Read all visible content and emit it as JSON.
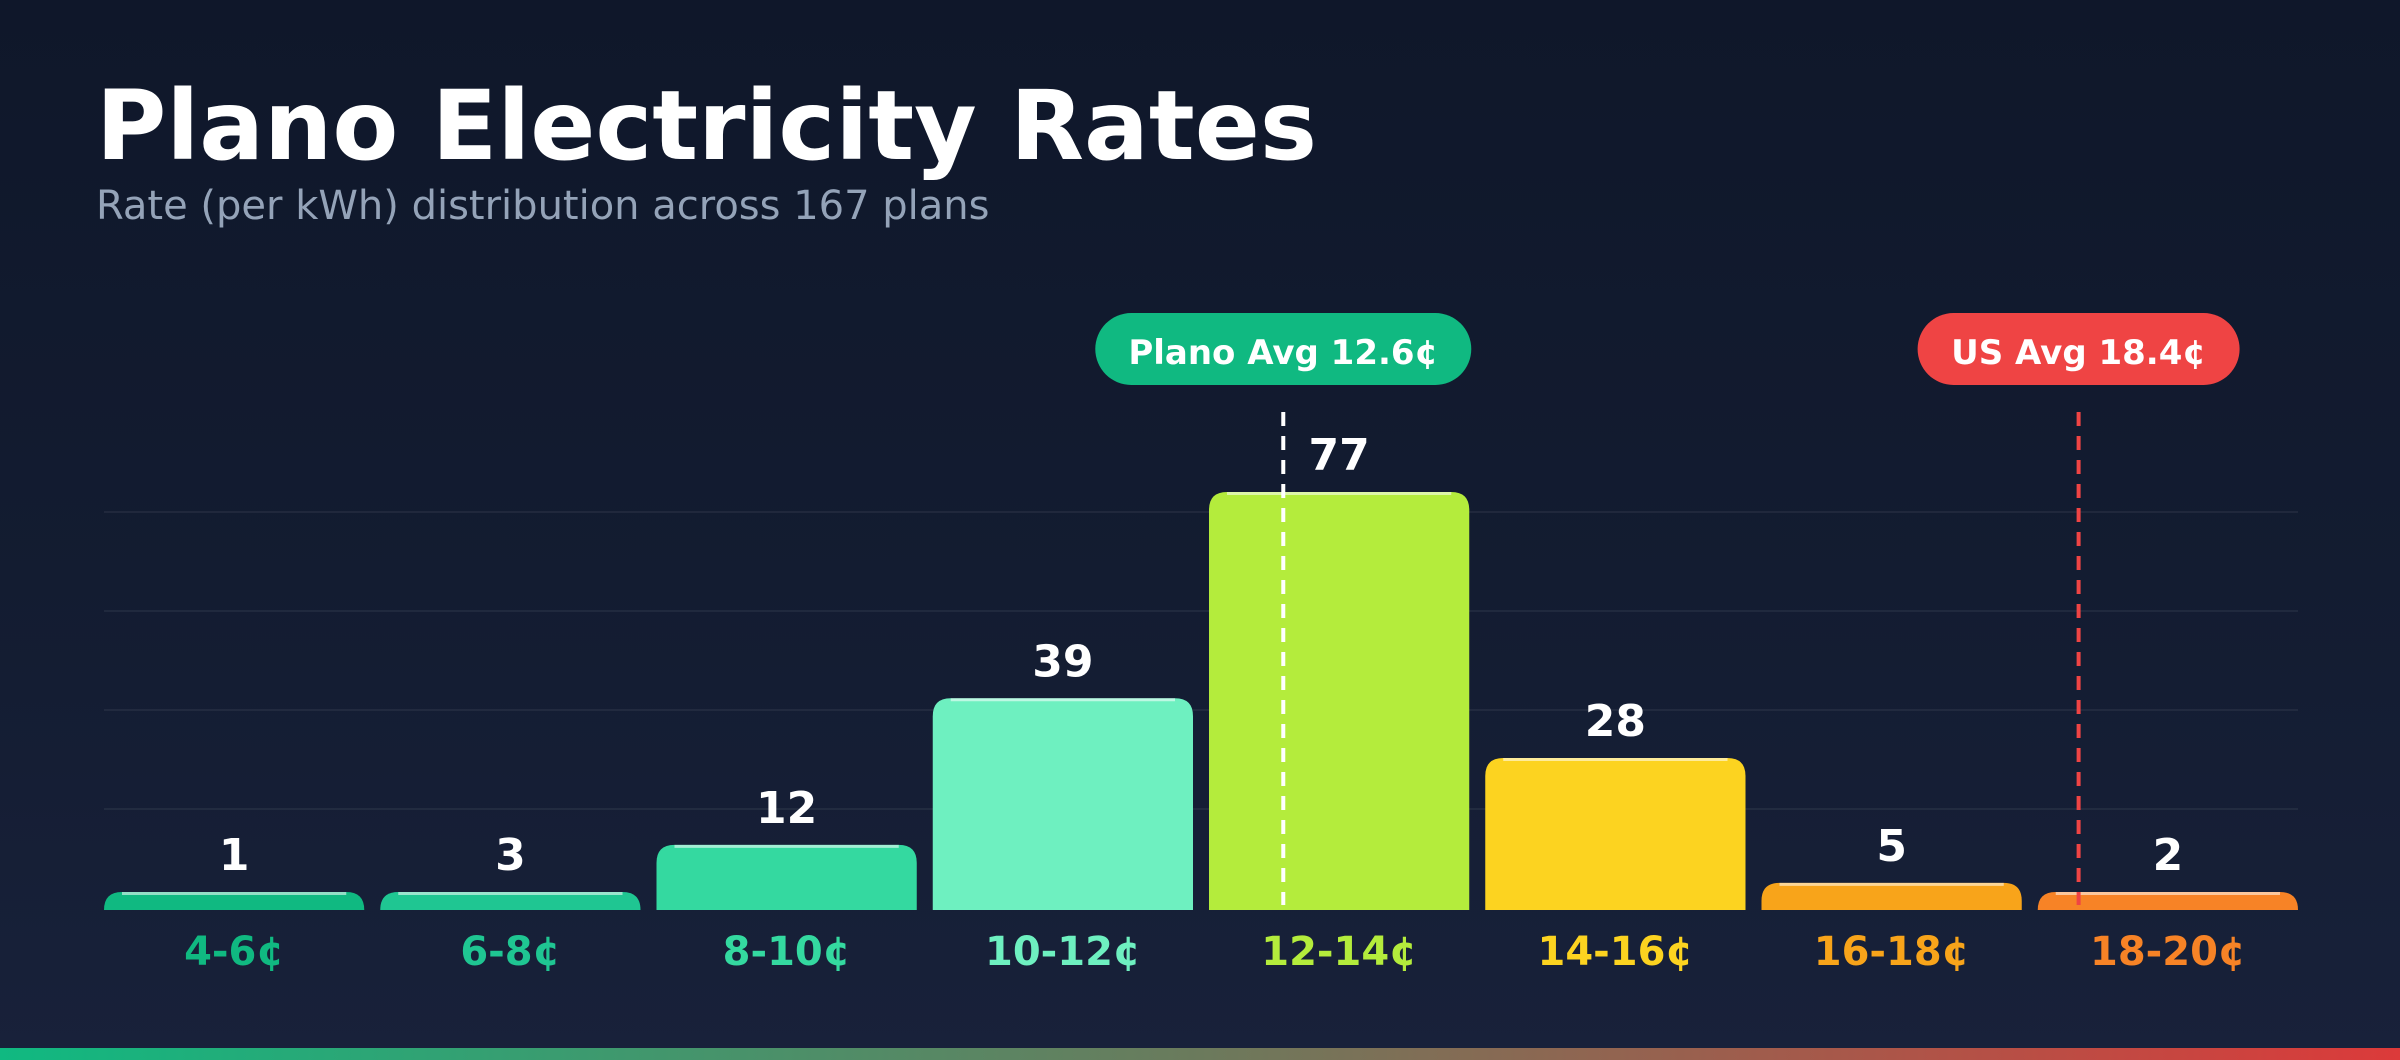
{
  "title": "Plano Electricity Rates",
  "subtitle": "Rate (per kWh) distribution across 167 plans",
  "chart_data": {
    "type": "bar",
    "title": "Plano Electricity Rates",
    "subtitle": "Rate (per kWh) distribution across 167 plans",
    "categories": [
      "4-6¢",
      "6-8¢",
      "8-10¢",
      "10-12¢",
      "12-14¢",
      "14-16¢",
      "16-18¢",
      "18-20¢"
    ],
    "values": [
      1,
      3,
      12,
      39,
      77,
      28,
      5,
      2
    ],
    "colors": [
      "#10b981",
      "#1fc692",
      "#34d9a0",
      "#6ef0c0",
      "#b4ec3c",
      "#fcd320",
      "#f8a41a",
      "#f78326"
    ],
    "xlabel": "",
    "ylabel": "",
    "grid": true,
    "x_range_cents": [
      4,
      20
    ],
    "annotations": [
      {
        "label": "Plano Avg 12.6¢",
        "value": 12.6,
        "color": "#10b981",
        "line_color": "#ffffff"
      },
      {
        "label": "US Avg 18.4¢",
        "value": 18.4,
        "color": "#ef4444",
        "line_color": "#ef4444"
      }
    ]
  }
}
